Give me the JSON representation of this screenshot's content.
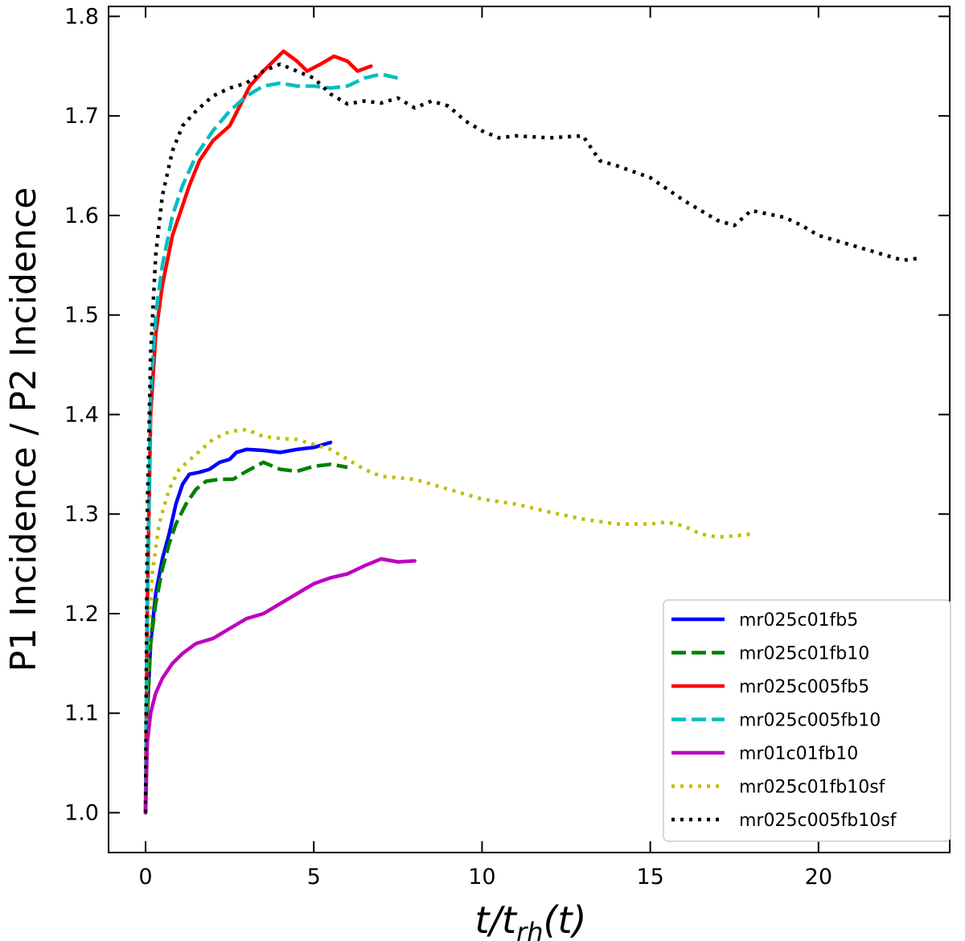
{
  "chart_data": {
    "type": "line",
    "title": "",
    "xlabel": "t/t_rh(t)",
    "xlabel_parts": {
      "main": "t/t",
      "sub": "rh",
      "tail": "(t)"
    },
    "ylabel": "P1 Incidence / P2 Incidence",
    "xlim": [
      -1.1,
      23.9
    ],
    "ylim": [
      0.96,
      1.81
    ],
    "xticks": [
      0,
      5,
      10,
      15,
      20
    ],
    "yticks": [
      1.0,
      1.1,
      1.2,
      1.3,
      1.4,
      1.5,
      1.6,
      1.7,
      1.8
    ],
    "ytick_labels": [
      "1.0",
      "1.1",
      "1.2",
      "1.3",
      "1.4",
      "1.5",
      "1.6",
      "1.7",
      "1.8"
    ],
    "legend_position": "lower-right",
    "series": [
      {
        "name": "mr025c01fb5",
        "color": "#0000ff",
        "style": "solid",
        "points": [
          [
            0,
            1.0
          ],
          [
            0.05,
            1.1
          ],
          [
            0.15,
            1.17
          ],
          [
            0.3,
            1.22
          ],
          [
            0.5,
            1.255
          ],
          [
            0.7,
            1.28
          ],
          [
            0.9,
            1.31
          ],
          [
            1.1,
            1.33
          ],
          [
            1.3,
            1.34
          ],
          [
            1.6,
            1.342
          ],
          [
            1.9,
            1.345
          ],
          [
            2.2,
            1.352
          ],
          [
            2.5,
            1.355
          ],
          [
            2.7,
            1.362
          ],
          [
            3.0,
            1.365
          ],
          [
            3.5,
            1.364
          ],
          [
            4.0,
            1.362
          ],
          [
            4.5,
            1.365
          ],
          [
            5.0,
            1.367
          ],
          [
            5.5,
            1.372
          ]
        ]
      },
      {
        "name": "mr025c01fb10",
        "color": "#008000",
        "style": "dashed",
        "points": [
          [
            0,
            1.0
          ],
          [
            0.05,
            1.1
          ],
          [
            0.15,
            1.17
          ],
          [
            0.3,
            1.21
          ],
          [
            0.5,
            1.245
          ],
          [
            0.7,
            1.27
          ],
          [
            0.9,
            1.29
          ],
          [
            1.2,
            1.31
          ],
          [
            1.5,
            1.325
          ],
          [
            1.8,
            1.333
          ],
          [
            2.2,
            1.335
          ],
          [
            2.6,
            1.335
          ],
          [
            3.0,
            1.343
          ],
          [
            3.5,
            1.352
          ],
          [
            4.0,
            1.345
          ],
          [
            4.5,
            1.343
          ],
          [
            5.0,
            1.348
          ],
          [
            5.5,
            1.35
          ],
          [
            6.0,
            1.347
          ]
        ]
      },
      {
        "name": "mr025c005fb5",
        "color": "#ff0000",
        "style": "solid",
        "points": [
          [
            0,
            1.0
          ],
          [
            0.05,
            1.2
          ],
          [
            0.15,
            1.4
          ],
          [
            0.3,
            1.48
          ],
          [
            0.5,
            1.53
          ],
          [
            0.8,
            1.58
          ],
          [
            1.0,
            1.6
          ],
          [
            1.3,
            1.63
          ],
          [
            1.6,
            1.655
          ],
          [
            2.0,
            1.675
          ],
          [
            2.5,
            1.69
          ],
          [
            2.8,
            1.71
          ],
          [
            3.1,
            1.73
          ],
          [
            3.5,
            1.745
          ],
          [
            3.8,
            1.755
          ],
          [
            4.1,
            1.765
          ],
          [
            4.5,
            1.755
          ],
          [
            4.8,
            1.745
          ],
          [
            5.2,
            1.752
          ],
          [
            5.6,
            1.76
          ],
          [
            6.0,
            1.755
          ],
          [
            6.3,
            1.745
          ],
          [
            6.7,
            1.75
          ]
        ]
      },
      {
        "name": "mr025c005fb10",
        "color": "#00bfbf",
        "style": "dashed",
        "points": [
          [
            0,
            1.0
          ],
          [
            0.05,
            1.2
          ],
          [
            0.15,
            1.42
          ],
          [
            0.3,
            1.5
          ],
          [
            0.5,
            1.55
          ],
          [
            0.8,
            1.6
          ],
          [
            1.1,
            1.63
          ],
          [
            1.5,
            1.66
          ],
          [
            2.0,
            1.685
          ],
          [
            2.5,
            1.705
          ],
          [
            3.0,
            1.72
          ],
          [
            3.5,
            1.73
          ],
          [
            4.0,
            1.733
          ],
          [
            4.5,
            1.73
          ],
          [
            5.0,
            1.73
          ],
          [
            5.5,
            1.728
          ],
          [
            6.0,
            1.73
          ],
          [
            6.5,
            1.738
          ],
          [
            7.0,
            1.742
          ],
          [
            7.5,
            1.738
          ]
        ]
      },
      {
        "name": "mr01c01fb10",
        "color": "#bf00bf",
        "style": "solid",
        "points": [
          [
            0,
            1.0
          ],
          [
            0.05,
            1.07
          ],
          [
            0.15,
            1.1
          ],
          [
            0.3,
            1.12
          ],
          [
            0.5,
            1.135
          ],
          [
            0.8,
            1.15
          ],
          [
            1.1,
            1.16
          ],
          [
            1.5,
            1.17
          ],
          [
            2.0,
            1.175
          ],
          [
            2.5,
            1.185
          ],
          [
            3.0,
            1.195
          ],
          [
            3.5,
            1.2
          ],
          [
            4.0,
            1.21
          ],
          [
            4.5,
            1.22
          ],
          [
            5.0,
            1.23
          ],
          [
            5.5,
            1.236
          ],
          [
            6.0,
            1.24
          ],
          [
            6.5,
            1.248
          ],
          [
            7.0,
            1.255
          ],
          [
            7.5,
            1.252
          ],
          [
            8.0,
            1.253
          ]
        ]
      },
      {
        "name": "mr025c01fb10sf",
        "color": "#bfbf00",
        "style": "dotted",
        "points": [
          [
            0,
            1.0
          ],
          [
            0.05,
            1.15
          ],
          [
            0.2,
            1.24
          ],
          [
            0.4,
            1.29
          ],
          [
            0.7,
            1.325
          ],
          [
            1.0,
            1.345
          ],
          [
            1.5,
            1.36
          ],
          [
            2.0,
            1.375
          ],
          [
            2.5,
            1.383
          ],
          [
            3.0,
            1.385
          ],
          [
            3.5,
            1.378
          ],
          [
            4.0,
            1.376
          ],
          [
            4.5,
            1.375
          ],
          [
            5.0,
            1.37
          ],
          [
            5.5,
            1.365
          ],
          [
            6.0,
            1.355
          ],
          [
            6.5,
            1.345
          ],
          [
            7.0,
            1.338
          ],
          [
            8.0,
            1.335
          ],
          [
            9.0,
            1.325
          ],
          [
            10.0,
            1.315
          ],
          [
            11.0,
            1.31
          ],
          [
            12.0,
            1.302
          ],
          [
            13.0,
            1.295
          ],
          [
            14.0,
            1.29
          ],
          [
            15.0,
            1.29
          ],
          [
            15.5,
            1.292
          ],
          [
            16.0,
            1.288
          ],
          [
            16.5,
            1.28
          ],
          [
            17.0,
            1.277
          ],
          [
            17.5,
            1.278
          ],
          [
            18.0,
            1.28
          ]
        ]
      },
      {
        "name": "mr025c005fb10sf",
        "color": "#000000",
        "style": "dotted",
        "points": [
          [
            0,
            1.0
          ],
          [
            0.05,
            1.3
          ],
          [
            0.15,
            1.46
          ],
          [
            0.3,
            1.56
          ],
          [
            0.5,
            1.62
          ],
          [
            0.8,
            1.665
          ],
          [
            1.1,
            1.69
          ],
          [
            1.5,
            1.705
          ],
          [
            2.0,
            1.72
          ],
          [
            2.5,
            1.728
          ],
          [
            3.0,
            1.733
          ],
          [
            3.5,
            1.745
          ],
          [
            4.0,
            1.752
          ],
          [
            4.5,
            1.745
          ],
          [
            5.0,
            1.738
          ],
          [
            5.5,
            1.722
          ],
          [
            6.0,
            1.712
          ],
          [
            6.5,
            1.715
          ],
          [
            7.0,
            1.713
          ],
          [
            7.5,
            1.718
          ],
          [
            8.0,
            1.708
          ],
          [
            8.5,
            1.715
          ],
          [
            9.0,
            1.71
          ],
          [
            9.5,
            1.695
          ],
          [
            10.0,
            1.685
          ],
          [
            10.5,
            1.678
          ],
          [
            11.0,
            1.68
          ],
          [
            12.0,
            1.678
          ],
          [
            13.0,
            1.68
          ],
          [
            13.5,
            1.655
          ],
          [
            14.0,
            1.65
          ],
          [
            15.0,
            1.638
          ],
          [
            16.0,
            1.615
          ],
          [
            16.5,
            1.605
          ],
          [
            17.0,
            1.595
          ],
          [
            17.5,
            1.59
          ],
          [
            18.0,
            1.605
          ],
          [
            19.0,
            1.598
          ],
          [
            19.5,
            1.59
          ],
          [
            20.0,
            1.58
          ],
          [
            20.5,
            1.575
          ],
          [
            21.0,
            1.57
          ],
          [
            22.0,
            1.56
          ],
          [
            22.5,
            1.555
          ],
          [
            23.0,
            1.557
          ]
        ]
      }
    ]
  }
}
